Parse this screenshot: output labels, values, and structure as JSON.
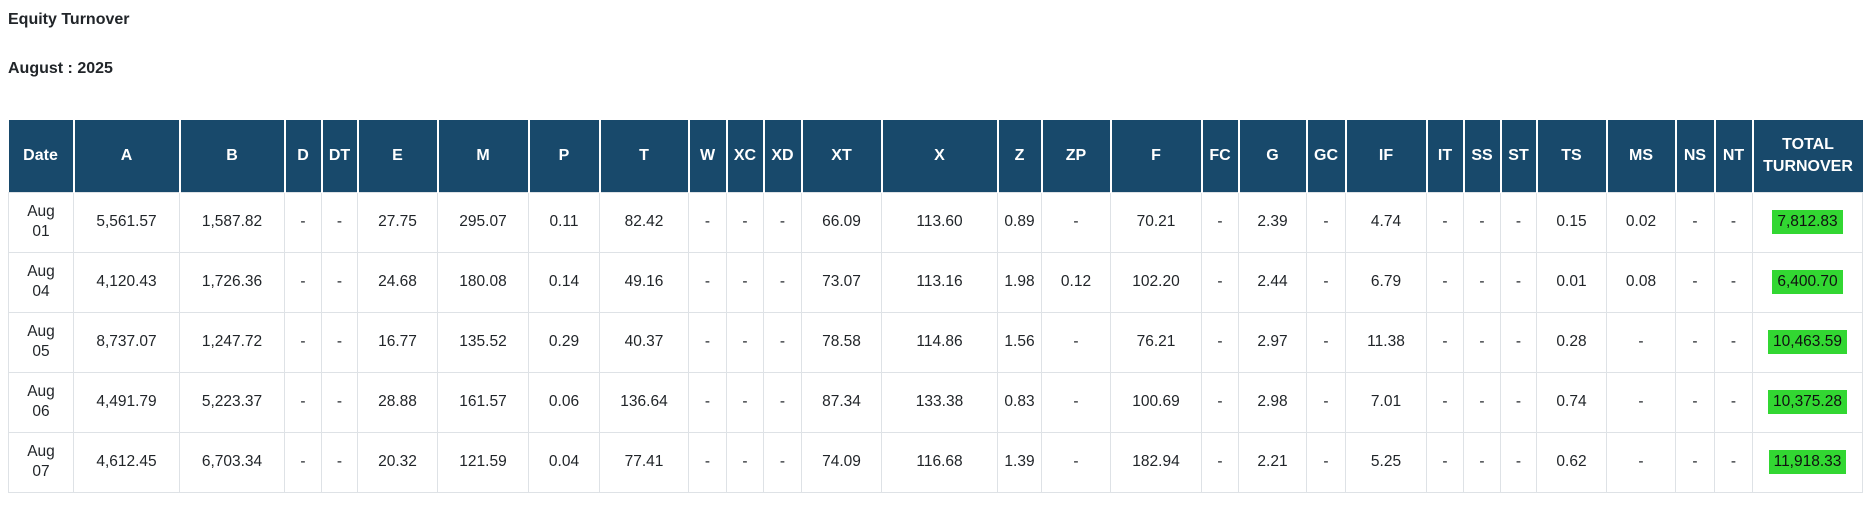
{
  "page": {
    "title": "Equity Turnover",
    "subtitle": "August : 2025"
  },
  "colors": {
    "header_bg": "#18496b",
    "header_text": "#ffffff",
    "total_highlight": "#32d732"
  },
  "table": {
    "columns": [
      "Date",
      "A",
      "B",
      "D",
      "DT",
      "E",
      "M",
      "P",
      "T",
      "W",
      "XC",
      "XD",
      "XT",
      "X",
      "Z",
      "ZP",
      "F",
      "FC",
      "G",
      "GC",
      "IF",
      "IT",
      "SS",
      "ST",
      "TS",
      "MS",
      "NS",
      "NT",
      "TOTAL TURNOVER"
    ],
    "rows": [
      {
        "date": "Aug 01",
        "values": [
          "5,561.57",
          "1,587.82",
          "-",
          "-",
          "27.75",
          "295.07",
          "0.11",
          "82.42",
          "-",
          "-",
          "-",
          "66.09",
          "113.60",
          "0.89",
          "-",
          "70.21",
          "-",
          "2.39",
          "-",
          "4.74",
          "-",
          "-",
          "-",
          "0.15",
          "0.02",
          "-",
          "-"
        ],
        "total": "7,812.83"
      },
      {
        "date": "Aug 04",
        "values": [
          "4,120.43",
          "1,726.36",
          "-",
          "-",
          "24.68",
          "180.08",
          "0.14",
          "49.16",
          "-",
          "-",
          "-",
          "73.07",
          "113.16",
          "1.98",
          "0.12",
          "102.20",
          "-",
          "2.44",
          "-",
          "6.79",
          "-",
          "-",
          "-",
          "0.01",
          "0.08",
          "-",
          "-"
        ],
        "total": "6,400.70"
      },
      {
        "date": "Aug 05",
        "values": [
          "8,737.07",
          "1,247.72",
          "-",
          "-",
          "16.77",
          "135.52",
          "0.29",
          "40.37",
          "-",
          "-",
          "-",
          "78.58",
          "114.86",
          "1.56",
          "-",
          "76.21",
          "-",
          "2.97",
          "-",
          "11.38",
          "-",
          "-",
          "-",
          "0.28",
          "-",
          "-",
          "-"
        ],
        "total": "10,463.59"
      },
      {
        "date": "Aug 06",
        "values": [
          "4,491.79",
          "5,223.37",
          "-",
          "-",
          "28.88",
          "161.57",
          "0.06",
          "136.64",
          "-",
          "-",
          "-",
          "87.34",
          "133.38",
          "0.83",
          "-",
          "100.69",
          "-",
          "2.98",
          "-",
          "7.01",
          "-",
          "-",
          "-",
          "0.74",
          "-",
          "-",
          "-"
        ],
        "total": "10,375.28"
      },
      {
        "date": "Aug 07",
        "values": [
          "4,612.45",
          "6,703.34",
          "-",
          "-",
          "20.32",
          "121.59",
          "0.04",
          "77.41",
          "-",
          "-",
          "-",
          "74.09",
          "116.68",
          "1.39",
          "-",
          "182.94",
          "-",
          "2.21",
          "-",
          "5.25",
          "-",
          "-",
          "-",
          "0.62",
          "-",
          "-",
          "-"
        ],
        "total": "11,918.33"
      }
    ]
  }
}
